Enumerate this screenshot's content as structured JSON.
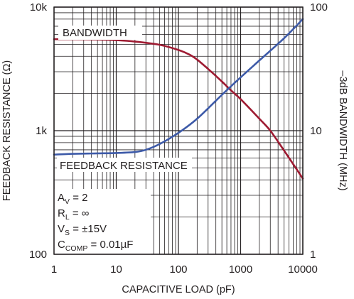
{
  "chart_data": {
    "type": "line",
    "x_scale": "log",
    "y_left_scale": "log",
    "y_right_scale": "log",
    "xlim": [
      1,
      10000
    ],
    "ylim_left": [
      100,
      10000
    ],
    "ylim_right": [
      1,
      100
    ],
    "grid": true,
    "xlabel": "CAPACITIVE LOAD (pF)",
    "ylabel_left": "FEEDBACK RESISTANCE (Ω)",
    "ylabel_right": "–3dB BANDWIDTH (MHz)",
    "x_ticks": [
      "1",
      "10",
      "100",
      "1000",
      "10000"
    ],
    "y_left_ticks": [
      "100",
      "1k",
      "10k"
    ],
    "y_right_ticks": [
      "1",
      "10",
      "100"
    ],
    "series": [
      {
        "name": "BANDWIDTH",
        "axis": "right",
        "color": "#9e1b32",
        "x": [
          1,
          2,
          5,
          10,
          20,
          50,
          100,
          150,
          200,
          300,
          500,
          700,
          1000,
          2000,
          3000,
          5000,
          10000
        ],
        "y": [
          55,
          55,
          54.7,
          54,
          52.6,
          49.5,
          45,
          41.3,
          37.6,
          31.6,
          25,
          21.2,
          18,
          12.5,
          10,
          6.9,
          4.1
        ]
      },
      {
        "name": "FEEDBACK RESISTANCE",
        "axis": "left",
        "color": "#3d5aa8",
        "x": [
          1,
          2,
          5,
          10,
          20,
          30,
          50,
          100,
          200,
          500,
          1000,
          2000,
          5000,
          10000
        ],
        "y": [
          640,
          650,
          655,
          660,
          672,
          700,
          780,
          960,
          1250,
          1950,
          2700,
          3700,
          5600,
          8000
        ]
      }
    ]
  },
  "annotations": {
    "bandwidth_label": "BANDWIDTH",
    "feedback_label": "FEEDBACK RESISTANCE"
  },
  "conditions": {
    "av_main": "A",
    "av_sub": "V",
    "av_value": " = 2",
    "rl_main": "R",
    "rl_sub": "L",
    "rl_value": " = ∞",
    "vs_main": "V",
    "vs_sub": "S",
    "vs_value": " = ±15V",
    "cc_main": "C",
    "cc_sub": "COMP",
    "cc_value": " = 0.01µF"
  }
}
